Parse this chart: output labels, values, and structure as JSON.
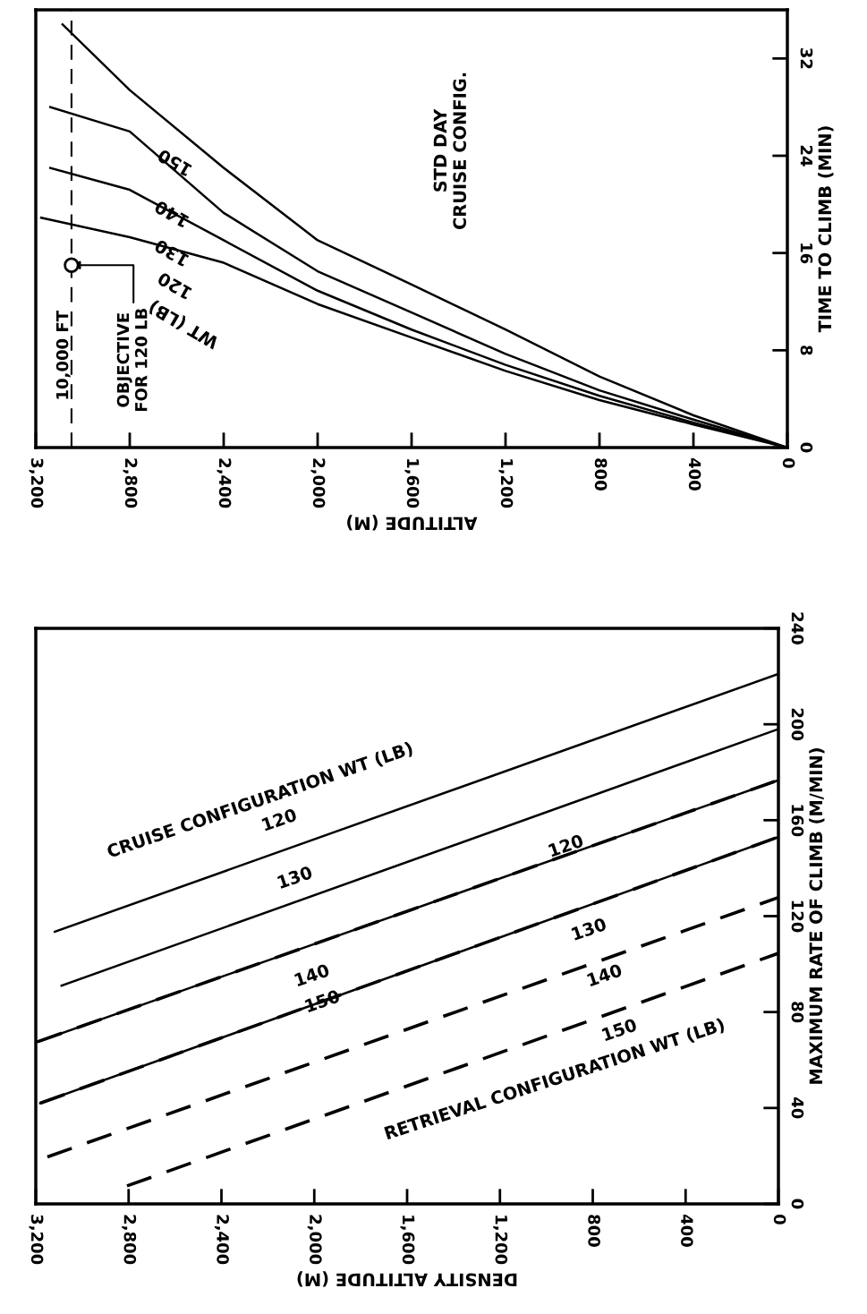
{
  "chart_data": [
    {
      "type": "line",
      "xlabel": "ALTITUDE (M)",
      "ylabel": "TIME TO CLIMB (MIN)",
      "xlim": [
        3200,
        0
      ],
      "xticks": [
        {
          "value": 3200,
          "label": "3,200"
        },
        {
          "value": 2800,
          "label": "2,800"
        },
        {
          "value": 2400,
          "label": "2,400"
        },
        {
          "value": 2000,
          "label": "2,000"
        },
        {
          "value": 1600,
          "label": "1,600"
        },
        {
          "value": 1200,
          "label": "1,200"
        },
        800,
        400,
        0
      ],
      "ylim": [
        0,
        36
      ],
      "yticks": [
        0,
        8,
        16,
        24,
        32
      ],
      "grid": false,
      "legend": false,
      "series": [
        {
          "color": "#000000",
          "line_style": "solid",
          "x": [
            3177,
            2800,
            2400,
            2000,
            1600,
            1200,
            800,
            400,
            0
          ],
          "values": [
            18.9,
            17.3,
            15.2,
            11.8,
            9.05,
            6.3,
            3.9,
            1.9,
            0
          ]
        },
        {
          "color": "#000000",
          "line_style": "solid",
          "x": [
            3138,
            2800,
            2400,
            2000,
            1600,
            1200,
            800,
            400,
            0
          ],
          "values": [
            23.0,
            21.2,
            17.05,
            12.9,
            9.7,
            6.8,
            4.25,
            2.05,
            0
          ]
        },
        {
          "color": "#000000",
          "line_style": "solid",
          "x": [
            3138,
            2800,
            2400,
            2000,
            1600,
            1200,
            800,
            400,
            0
          ],
          "values": [
            28.0,
            26.0,
            19.3,
            14.5,
            11.1,
            7.7,
            4.7,
            2.3,
            0
          ]
        },
        {
          "color": "#000000",
          "line_style": "solid",
          "x": [
            3086,
            2800,
            2400,
            2000,
            1600,
            1200,
            800,
            400,
            0
          ],
          "values": [
            34.8,
            29.4,
            23.0,
            17.05,
            13.4,
            9.7,
            5.85,
            2.65,
            0
          ]
        },
        {
          "type": "scatter",
          "color": "#000000",
          "marker": "circle",
          "x": [
            3048
          ],
          "values": [
            15
          ]
        }
      ],
      "ref_lines": [
        {
          "axis": "x",
          "value": 3048,
          "label": "10,000 FT",
          "line_style": "dashed",
          "color": "#000000"
        }
      ],
      "annotations": [
        "STD DAY\nCRUISE CONFIG.",
        "WT (LB)",
        "120",
        "130",
        "140",
        "150",
        {
          "text": "OBJECTIVE\nFOR 120 LB",
          "x": 3048,
          "y": 15
        }
      ]
    },
    {
      "type": "line",
      "xlabel": "DENSITY ALTITUDE (M)",
      "ylabel": "MAXIMUM RATE OF CLIMB (M/MIN)",
      "xlim": [
        3200,
        0
      ],
      "xticks": [
        {
          "value": 3200,
          "label": "3,200"
        },
        {
          "value": 2800,
          "label": "2,800"
        },
        {
          "value": 2400,
          "label": "2,400"
        },
        {
          "value": 2000,
          "label": "2,000"
        },
        {
          "value": 1600,
          "label": "1,600"
        },
        {
          "value": 1200,
          "label": "1,200"
        },
        800,
        400,
        0
      ],
      "ylim": [
        0,
        240
      ],
      "yticks": [
        0,
        40,
        80,
        120,
        160,
        200,
        240
      ],
      "grid": false,
      "legend": false,
      "series": [
        {
          "color": "#000000",
          "line_style": "solid",
          "x": [
            3118,
            0
          ],
          "values": [
            113.5,
            221
          ]
        },
        {
          "color": "#000000",
          "line_style": "solid",
          "x": [
            3089,
            0
          ],
          "values": [
            91,
            198
          ]
        },
        {
          "color": "#000000",
          "line_style": "solid",
          "x": [
            3193,
            0
          ],
          "values": [
            67.6,
            176.7
          ]
        },
        {
          "color": "#000000",
          "line_style": "solid",
          "x": [
            3181,
            0
          ],
          "values": [
            42,
            153
          ]
        },
        {
          "color": "#000000",
          "line_style": "dashed",
          "x": [
            3193,
            0
          ],
          "values": [
            67.6,
            176.7
          ]
        },
        {
          "color": "#000000",
          "line_style": "dashed",
          "x": [
            3181,
            0
          ],
          "values": [
            42,
            153
          ]
        },
        {
          "color": "#000000",
          "line_style": "dashed",
          "x": [
            3150,
            0
          ],
          "values": [
            19.6,
            127.8
          ]
        },
        {
          "color": "#000000",
          "line_style": "dashed",
          "x": [
            2807,
            0
          ],
          "values": [
            7.5,
            104.5
          ]
        }
      ],
      "annotations": [
        "CRUISE CONFIGURATION WT (LB)",
        "120",
        "130",
        "140",
        "150",
        "RETRIEVAL CONFIGURATION WT (LB)",
        "120",
        "130",
        "140",
        "150"
      ]
    }
  ]
}
